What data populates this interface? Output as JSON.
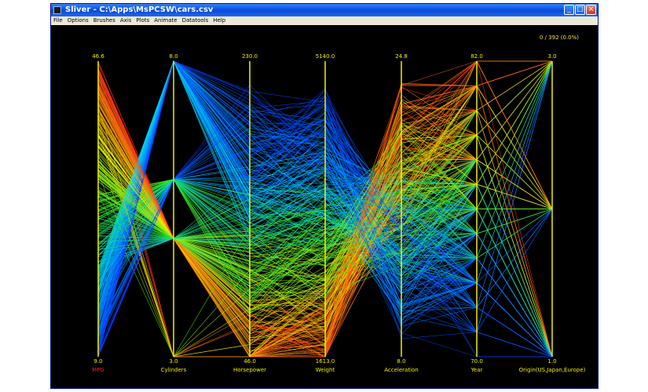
{
  "window": {
    "title": "Sliver - C:\\Apps\\MsPCSW\\cars.csv",
    "buttons": {
      "minimize": "_",
      "maximize": "□",
      "close": "×"
    }
  },
  "menu": [
    "File",
    "Options",
    "Brushes",
    "Axis",
    "Plots",
    "Animate",
    "Datatools",
    "Help"
  ],
  "selection_count": "0 / 392 (0.0%)",
  "colors": {
    "axis": "#f0f000",
    "highlight_axis": "#ff2020",
    "background": "#000000"
  },
  "axes": [
    {
      "name": "MPG",
      "max": "46.6",
      "min": "9.0",
      "label_color": "#ff2020"
    },
    {
      "name": "Cylinders",
      "max": "8.0",
      "min": "3.0"
    },
    {
      "name": "Horsepower",
      "max": "230.0",
      "min": "46.0"
    },
    {
      "name": "Weight",
      "max": "5140.0",
      "min": "1613.0"
    },
    {
      "name": "Acceleration",
      "max": "24.8",
      "min": "8.0"
    },
    {
      "name": "Year",
      "max": "82.0",
      "min": "70.0"
    },
    {
      "name": "Origin(US,Japan,Europe)",
      "max": "3.0",
      "min": "1.0"
    }
  ]
}
